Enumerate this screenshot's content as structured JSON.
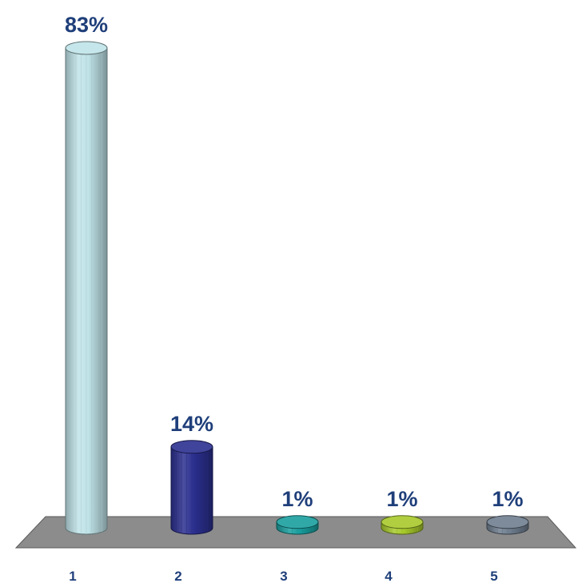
{
  "chart_data": {
    "type": "bar",
    "categories": [
      "1",
      "2",
      "3",
      "4",
      "5"
    ],
    "values": [
      83,
      14,
      1,
      1,
      1
    ],
    "value_labels": [
      "83%",
      "14%",
      "1%",
      "1%",
      "1%"
    ],
    "ylim": [
      0,
      83
    ],
    "title": "",
    "xlabel": "",
    "ylabel": "",
    "grid": false,
    "style": "3d-cylinder",
    "colors": [
      "#bfe3e8",
      "#2b2f8f",
      "#1a9e9e",
      "#a7c92b",
      "#6f7e8f"
    ],
    "label_color": "#1f3f7a",
    "floor_color": "#8c8c8c"
  }
}
